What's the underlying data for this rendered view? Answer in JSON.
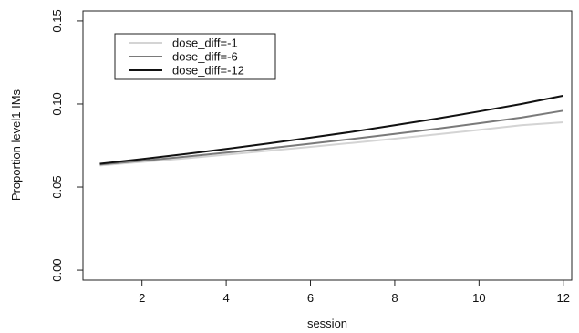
{
  "chart_data": {
    "type": "line",
    "title": "",
    "xlabel": "session",
    "ylabel": "Proportion level1 IMs",
    "xlim": [
      0.6,
      12.2
    ],
    "ylim": [
      -0.006,
      0.156
    ],
    "xticks": [
      2,
      4,
      6,
      8,
      10,
      12
    ],
    "xtick_labels": [
      "2",
      "4",
      "6",
      "8",
      "10",
      "12"
    ],
    "yticks": [
      0.0,
      0.05,
      0.1,
      0.15
    ],
    "ytick_labels": [
      "0.00",
      "0.05",
      "0.10",
      "0.15"
    ],
    "grid": false,
    "legend_position": "top-left",
    "series": [
      {
        "name": "dose_diff=-1",
        "color": "#d4d4d4",
        "x": [
          1,
          2,
          3,
          4,
          5,
          6,
          7,
          8,
          9,
          10,
          11,
          12
        ],
        "y": [
          0.063,
          0.0651,
          0.0672,
          0.0695,
          0.0718,
          0.0742,
          0.0766,
          0.0791,
          0.0817,
          0.0844,
          0.0872,
          0.089
        ]
      },
      {
        "name": "dose_diff=-6",
        "color": "#7a7a7a",
        "x": [
          1,
          2,
          3,
          4,
          5,
          6,
          7,
          8,
          9,
          10,
          11,
          12
        ],
        "y": [
          0.0635,
          0.0658,
          0.0682,
          0.0707,
          0.0733,
          0.0761,
          0.079,
          0.082,
          0.0851,
          0.0884,
          0.0918,
          0.096
        ]
      },
      {
        "name": "dose_diff=-12",
        "color": "#111111",
        "x": [
          1,
          2,
          3,
          4,
          5,
          6,
          7,
          8,
          9,
          10,
          11,
          12
        ],
        "y": [
          0.064,
          0.0668,
          0.0698,
          0.0729,
          0.0762,
          0.0797,
          0.0833,
          0.0872,
          0.0912,
          0.0955,
          0.1,
          0.105
        ]
      }
    ]
  }
}
